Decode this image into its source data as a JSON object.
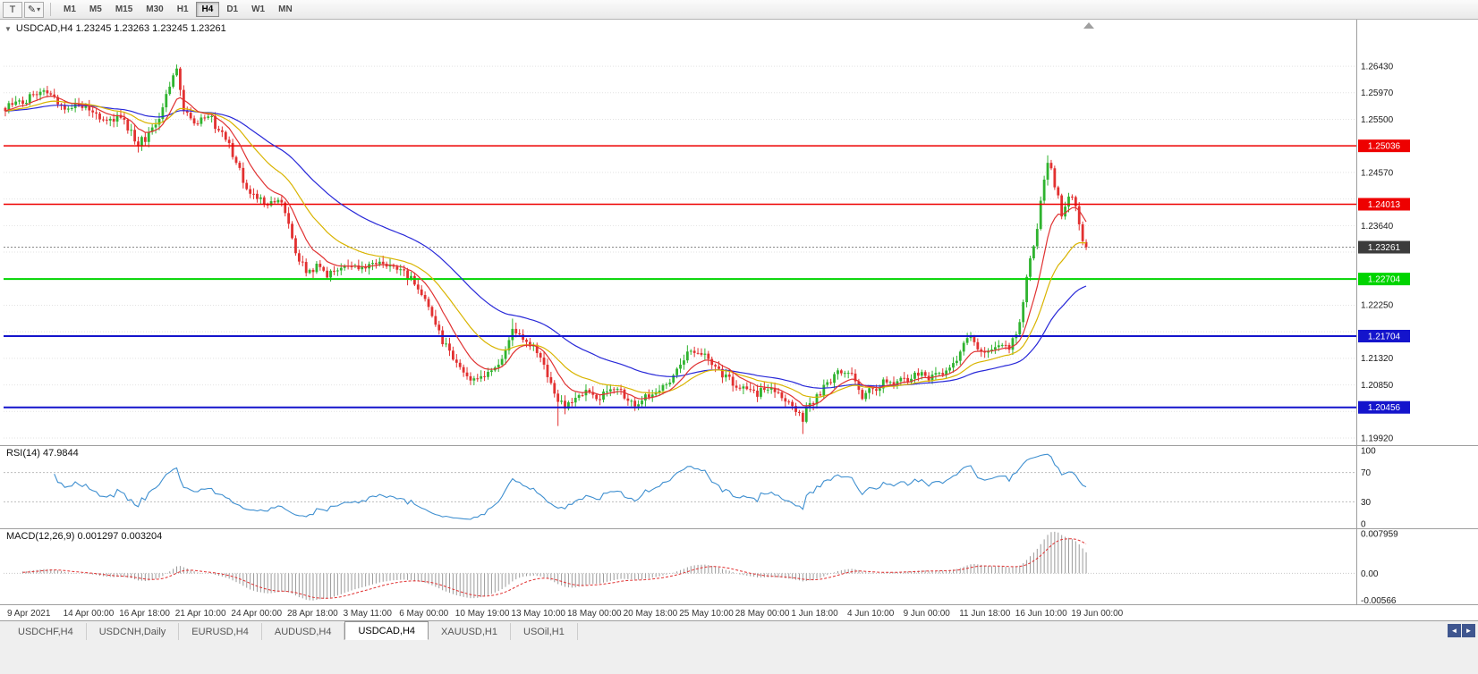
{
  "toolbar": {
    "chart_type_label": "T",
    "draw_icon": "✎",
    "dropdown_caret": "▾",
    "timeframes": [
      "M1",
      "M5",
      "M15",
      "M30",
      "H1",
      "H4",
      "D1",
      "W1",
      "MN"
    ],
    "active_timeframe": "H4"
  },
  "panels": {
    "collapse_icon": "▼",
    "rsi_header": "RSI(14) 47.9844",
    "macd_header": "MACD(12,26,9) 0.001297 0.003204"
  },
  "tabbar": {
    "tabs": [
      "USDCHF,H4",
      "USDCNH,Daily",
      "EURUSD,H4",
      "AUDUSD,H4",
      "USDCAD,H4",
      "XAUUSD,H1",
      "USOil,H1"
    ],
    "active": "USDCAD,H4",
    "scroll_left_icon": "◄",
    "scroll_right_icon": "►"
  },
  "chart_data": {
    "type": "candlestick",
    "title": "USDCAD,H4 1.23245 1.23263 1.23245 1.23261",
    "symbol": "USDCAD",
    "timeframe": "H4",
    "ohlc": {
      "open": 1.23245,
      "high": 1.23263,
      "low": 1.23245,
      "close": 1.23261
    },
    "y_axis": {
      "visible_labels": [
        "1.26430",
        "1.25970",
        "1.25500",
        "1.24570",
        "1.23640",
        "1.22250",
        "1.21320",
        "1.20850",
        "1.19920"
      ],
      "grid_top": 1.2643,
      "grid_step": 0.00465,
      "grid_lines": 15,
      "price_top": 1.2723,
      "price_bottom": 1.1981
    },
    "x_labels": [
      "9 Apr 2021",
      "14 Apr 00:00",
      "16 Apr 18:00",
      "21 Apr 10:00",
      "24 Apr 00:00",
      "28 Apr 18:00",
      "3 May 11:00",
      "6 May 00:00",
      "10 May 19:00",
      "13 May 10:00",
      "18 May 00:00",
      "20 May 18:00",
      "25 May 10:00",
      "28 May 00:00",
      "1 Jun 18:00",
      "4 Jun 10:00",
      "9 Jun 00:00",
      "11 Jun 18:00",
      "16 Jun 10:00",
      "19 Jun 00:00"
    ],
    "horizontal_lines": [
      {
        "price": 1.25036,
        "label": "1.25036",
        "color": "#ee0000",
        "width": 1.5
      },
      {
        "price": 1.24013,
        "label": "1.24013",
        "color": "#ee0000",
        "width": 1.5
      },
      {
        "price": 1.22704,
        "label": "1.22704",
        "color": "#00d400",
        "width": 2
      },
      {
        "price": 1.21704,
        "label": "1.21704",
        "color": "#1414cc",
        "width": 2
      },
      {
        "price": 1.20456,
        "label": "1.20456",
        "color": "#1414cc",
        "width": 2
      }
    ],
    "current_price": {
      "value": 1.23261,
      "label": "1.23261",
      "badge_color": "#3c3c3c"
    },
    "candles": {
      "count": 310,
      "up_color": "#2fb32f",
      "down_color": "#e23030",
      "last_close": 1.23261,
      "price_path": [
        [
          0.0,
          1.257
        ],
        [
          0.022,
          1.2588
        ],
        [
          0.037,
          1.2597
        ],
        [
          0.055,
          1.2565
        ],
        [
          0.074,
          1.2578
        ],
        [
          0.09,
          1.2545
        ],
        [
          0.107,
          1.2556
        ],
        [
          0.123,
          1.2508
        ],
        [
          0.132,
          1.252
        ],
        [
          0.144,
          1.2552
        ],
        [
          0.152,
          1.2612
        ],
        [
          0.158,
          1.264
        ],
        [
          0.164,
          1.2572
        ],
        [
          0.172,
          1.2546
        ],
        [
          0.19,
          1.2552
        ],
        [
          0.206,
          1.2506
        ],
        [
          0.215,
          1.2472
        ],
        [
          0.222,
          1.2432
        ],
        [
          0.231,
          1.2415
        ],
        [
          0.246,
          1.24
        ],
        [
          0.256,
          1.2406
        ],
        [
          0.263,
          1.2358
        ],
        [
          0.272,
          1.23
        ],
        [
          0.281,
          1.2281
        ],
        [
          0.289,
          1.2292
        ],
        [
          0.297,
          1.2276
        ],
        [
          0.312,
          1.2294
        ],
        [
          0.329,
          1.2286
        ],
        [
          0.345,
          1.2302
        ],
        [
          0.36,
          1.2295
        ],
        [
          0.374,
          1.2272
        ],
        [
          0.383,
          1.2256
        ],
        [
          0.392,
          1.222
        ],
        [
          0.4,
          1.218
        ],
        [
          0.408,
          1.215
        ],
        [
          0.42,
          1.2115
        ],
        [
          0.432,
          1.2095
        ],
        [
          0.445,
          1.2102
        ],
        [
          0.455,
          1.2112
        ],
        [
          0.464,
          1.215
        ],
        [
          0.47,
          1.2192
        ],
        [
          0.478,
          1.216
        ],
        [
          0.489,
          1.2148
        ],
        [
          0.498,
          1.2118
        ],
        [
          0.508,
          1.2065
        ],
        [
          0.518,
          1.2048
        ],
        [
          0.528,
          1.206
        ],
        [
          0.538,
          1.2076
        ],
        [
          0.548,
          1.2062
        ],
        [
          0.558,
          1.2072
        ],
        [
          0.566,
          1.2082
        ],
        [
          0.574,
          1.2062
        ],
        [
          0.582,
          1.205
        ],
        [
          0.594,
          1.2066
        ],
        [
          0.604,
          1.2076
        ],
        [
          0.614,
          1.2092
        ],
        [
          0.622,
          1.2112
        ],
        [
          0.63,
          1.2136
        ],
        [
          0.641,
          1.2142
        ],
        [
          0.65,
          1.213
        ],
        [
          0.658,
          1.2112
        ],
        [
          0.667,
          1.2096
        ],
        [
          0.676,
          1.2086
        ],
        [
          0.686,
          1.2078
        ],
        [
          0.696,
          1.207
        ],
        [
          0.705,
          1.208
        ],
        [
          0.713,
          1.2072
        ],
        [
          0.721,
          1.2058
        ],
        [
          0.729,
          1.2046
        ],
        [
          0.737,
          1.2022
        ],
        [
          0.742,
          1.2042
        ],
        [
          0.748,
          1.2056
        ],
        [
          0.755,
          1.2072
        ],
        [
          0.762,
          1.2092
        ],
        [
          0.77,
          1.2106
        ],
        [
          0.778,
          1.2112
        ],
        [
          0.785,
          1.21
        ],
        [
          0.791,
          1.2062
        ],
        [
          0.799,
          1.2072
        ],
        [
          0.807,
          1.2082
        ],
        [
          0.815,
          1.2092
        ],
        [
          0.823,
          1.2086
        ],
        [
          0.832,
          1.2093
        ],
        [
          0.84,
          1.2102
        ],
        [
          0.848,
          1.2112
        ],
        [
          0.856,
          1.2096
        ],
        [
          0.864,
          1.2102
        ],
        [
          0.872,
          1.2112
        ],
        [
          0.88,
          1.2126
        ],
        [
          0.888,
          1.2158
        ],
        [
          0.893,
          1.2166
        ],
        [
          0.899,
          1.215
        ],
        [
          0.907,
          1.2142
        ],
        [
          0.915,
          1.2152
        ],
        [
          0.923,
          1.2162
        ],
        [
          0.93,
          1.215
        ],
        [
          0.938,
          1.2192
        ],
        [
          0.944,
          1.2256
        ],
        [
          0.949,
          1.2315
        ],
        [
          0.954,
          1.2355
        ],
        [
          0.959,
          1.2425
        ],
        [
          0.963,
          1.2472
        ],
        [
          0.966,
          1.248
        ],
        [
          0.97,
          1.2442
        ],
        [
          0.974,
          1.2412
        ],
        [
          0.978,
          1.2382
        ],
        [
          0.982,
          1.2402
        ],
        [
          0.986,
          1.2415
        ],
        [
          0.99,
          1.2398
        ],
        [
          0.994,
          1.2362
        ],
        [
          0.997,
          1.2335
        ],
        [
          1.0,
          1.2326
        ]
      ],
      "spikes": [
        {
          "t": 0.123,
          "l": 1.2497
        },
        {
          "t": 0.158,
          "h": 1.2646
        },
        {
          "t": 0.47,
          "h": 1.2201
        },
        {
          "t": 0.512,
          "l": 1.2013
        },
        {
          "t": 0.737,
          "l": 1.1999
        },
        {
          "t": 0.966,
          "h": 1.2487
        }
      ]
    },
    "moving_averages": [
      {
        "period": 10,
        "color": "#e03232"
      },
      {
        "period": 24,
        "color": "#d9b400"
      },
      {
        "period": 52,
        "color": "#2828d8"
      }
    ],
    "rsi": {
      "period": 14,
      "value": 47.9844,
      "color": "#3e8fd0",
      "levels": [
        100,
        70,
        30,
        0
      ],
      "level_labels": [
        "100",
        "70",
        "30",
        "0"
      ]
    },
    "macd": {
      "fast": 12,
      "slow": 26,
      "signal": 9,
      "value": 0.001297,
      "signal_value": 0.003204,
      "histogram_color": "#9a9a9a",
      "signal_color": "#e03030",
      "axis_labels": [
        "0.007959",
        "0.00",
        "-0.00566"
      ],
      "axis_max": 0.007959,
      "axis_min": -0.00566
    }
  }
}
